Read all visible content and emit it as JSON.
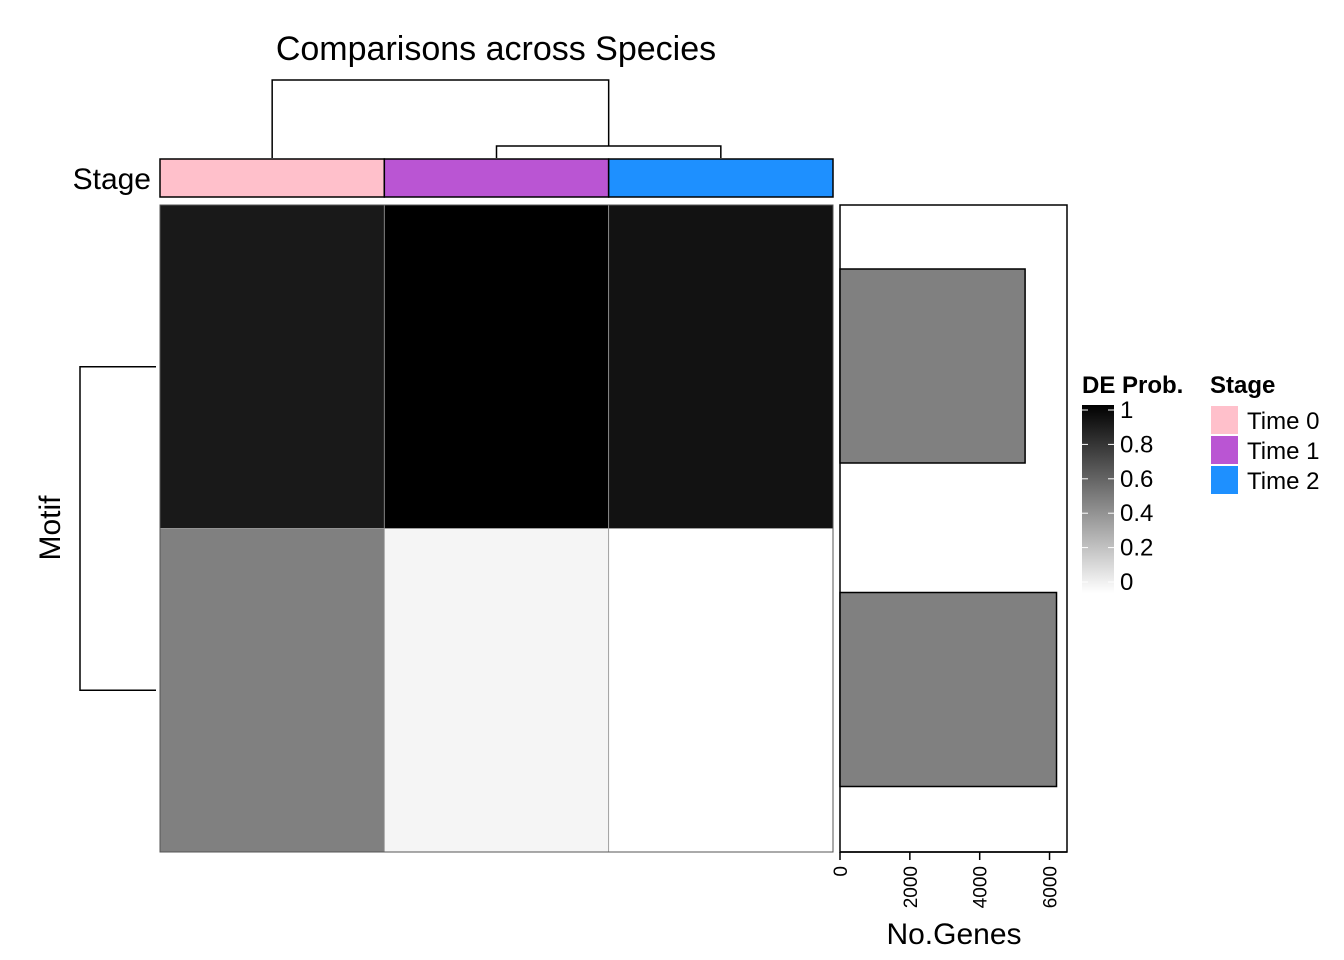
{
  "chart_data": {
    "type": "heatmap",
    "title": "Comparisons across Species",
    "row_title": "Motif",
    "annotation_label": "Stage",
    "columns": [
      {
        "stage": "Time 0"
      },
      {
        "stage": "Time 1"
      },
      {
        "stage": "Time 2"
      }
    ],
    "rows": 2,
    "values": [
      [
        0.9,
        1.0,
        0.93
      ],
      [
        0.5,
        0.04,
        0.0
      ]
    ],
    "color_scale": {
      "name": "DE Prob.",
      "low": "#ffffff",
      "high": "#000000",
      "range": [
        0,
        1
      ],
      "ticks": [
        "1",
        "0.8",
        "0.6",
        "0.4",
        "0.2",
        "0"
      ]
    },
    "stage_legend": {
      "title": "Stage",
      "items": [
        {
          "label": "Time 0",
          "color": "#ffc0cb"
        },
        {
          "label": "Time 1",
          "color": "#ba55d3"
        },
        {
          "label": "Time 2",
          "color": "#1e90ff"
        }
      ]
    },
    "row_bars": {
      "xlabel": "No.Genes",
      "values": [
        5300,
        6200
      ],
      "xlim": [
        0,
        6500
      ],
      "ticks": [
        0,
        2000,
        4000,
        6000
      ],
      "fill": "#808080"
    },
    "column_dendrogram": "Time 0 joins (Time 1, Time 2)",
    "row_dendrogram": "row 1 joins row 2"
  }
}
